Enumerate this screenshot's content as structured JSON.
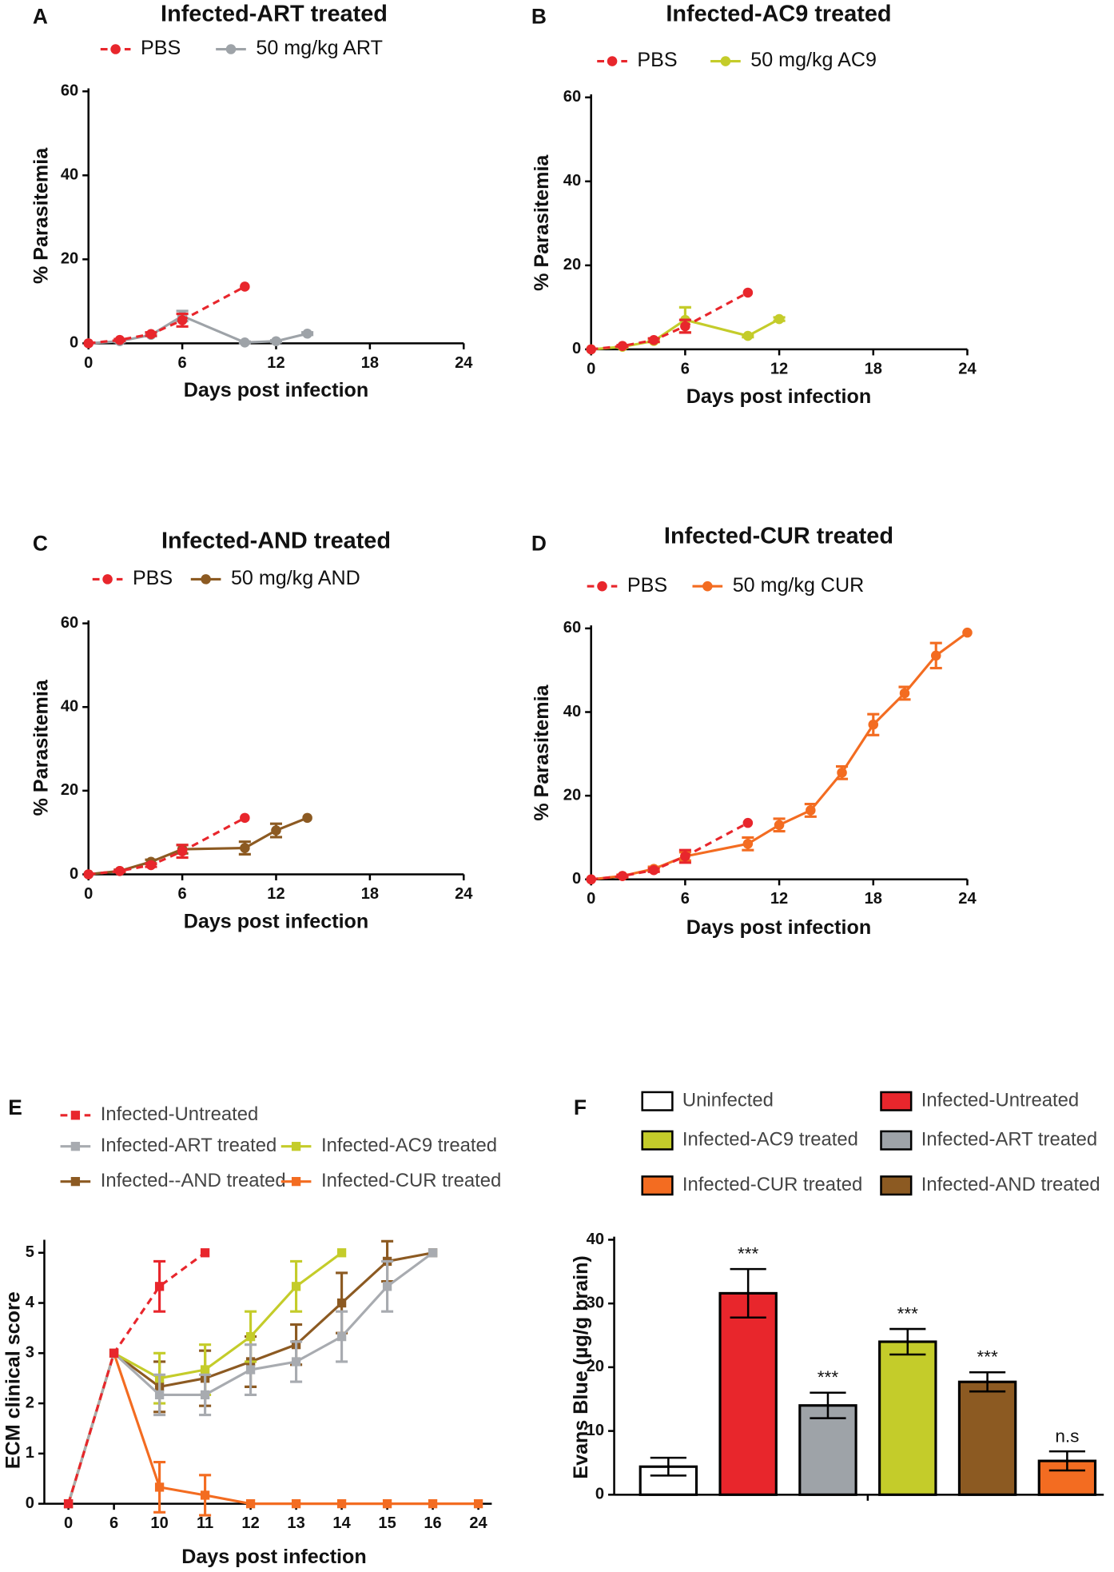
{
  "chart_data": [
    {
      "panel_label": "A",
      "type": "line",
      "title": "Infected-ART treated",
      "xlabel": "Days post infection",
      "ylabel": "% Parasitemia",
      "xlim": [
        0,
        24
      ],
      "xticks": [
        0,
        6,
        12,
        18,
        24
      ],
      "ylim": [
        0,
        60
      ],
      "yticks": [
        0,
        20,
        40,
        60
      ],
      "series": [
        {
          "name": "PBS",
          "color": "#e8262c",
          "line_style": "dashed",
          "marker": "circle",
          "x": [
            0,
            2,
            4,
            6,
            10
          ],
          "values": [
            0,
            0.8,
            2.2,
            5.5,
            13.5
          ],
          "errors": [
            0,
            0.2,
            0.4,
            1.5,
            0
          ]
        },
        {
          "name": "50 mg/kg ART",
          "color": "#9ea3a8",
          "line_style": "solid",
          "marker": "circle",
          "x": [
            0,
            2,
            4,
            6,
            10,
            12,
            14
          ],
          "values": [
            0,
            0.5,
            2,
            6.5,
            0.2,
            0.5,
            2.3
          ],
          "errors": [
            0,
            0.2,
            0.3,
            1.2,
            0.2,
            0.2,
            0.3
          ]
        }
      ]
    },
    {
      "panel_label": "B",
      "type": "line",
      "title": "Infected-AC9 treated",
      "xlabel": "Days post infection",
      "ylabel": "% Parasitemia",
      "xlim": [
        0,
        24
      ],
      "xticks": [
        0,
        6,
        12,
        18,
        24
      ],
      "ylim": [
        0,
        60
      ],
      "yticks": [
        0,
        20,
        40,
        60
      ],
      "series": [
        {
          "name": "PBS",
          "color": "#e8262c",
          "line_style": "dashed",
          "marker": "circle",
          "x": [
            0,
            2,
            4,
            6,
            10
          ],
          "values": [
            0,
            0.8,
            2.2,
            5.5,
            13.5
          ],
          "errors": [
            0,
            0.2,
            0.4,
            1.5,
            0
          ]
        },
        {
          "name": "50 mg/kg AC9",
          "color": "#c4cc2a",
          "line_style": "solid",
          "marker": "circle",
          "x": [
            0,
            2,
            4,
            6,
            10,
            12
          ],
          "values": [
            0,
            0.6,
            2,
            7,
            3.2,
            7.2
          ],
          "errors": [
            0,
            0.2,
            0.3,
            3,
            0.3,
            0.4
          ]
        }
      ]
    },
    {
      "panel_label": "C",
      "type": "line",
      "title": "Infected-AND treated",
      "xlabel": "Days post infection",
      "ylabel": "% Parasitemia",
      "xlim": [
        0,
        24
      ],
      "xticks": [
        0,
        6,
        12,
        18,
        24
      ],
      "ylim": [
        0,
        60
      ],
      "yticks": [
        0,
        20,
        40,
        60
      ],
      "series": [
        {
          "name": "PBS",
          "color": "#e8262c",
          "line_style": "dashed",
          "marker": "circle",
          "x": [
            0,
            2,
            4,
            6,
            10
          ],
          "values": [
            0,
            0.8,
            2.2,
            5.5,
            13.5
          ],
          "errors": [
            0,
            0.2,
            0.4,
            1.5,
            0
          ]
        },
        {
          "name": "50 mg/kg AND",
          "color": "#8c5a22",
          "line_style": "solid",
          "marker": "circle",
          "x": [
            0,
            2,
            4,
            6,
            10,
            12,
            14
          ],
          "values": [
            0,
            0.8,
            3,
            6,
            6.3,
            10.5,
            13.5
          ],
          "errors": [
            0,
            0.3,
            0.5,
            1,
            1.5,
            1.6,
            0
          ]
        }
      ]
    },
    {
      "panel_label": "D",
      "type": "line",
      "title": "Infected-CUR treated",
      "xlabel": "Days post infection",
      "ylabel": "% Parasitemia",
      "xlim": [
        0,
        24
      ],
      "xticks": [
        0,
        6,
        12,
        18,
        24
      ],
      "ylim": [
        0,
        60
      ],
      "yticks": [
        0,
        20,
        40,
        60
      ],
      "series": [
        {
          "name": "PBS",
          "color": "#e8262c",
          "line_style": "dashed",
          "marker": "circle",
          "x": [
            0,
            2,
            4,
            6,
            10
          ],
          "values": [
            0,
            0.8,
            2.2,
            5.5,
            13.5
          ],
          "errors": [
            0,
            0.2,
            0.4,
            1.5,
            0
          ]
        },
        {
          "name": "50 mg/kg CUR",
          "color": "#f36c21",
          "line_style": "solid",
          "marker": "circle",
          "x": [
            0,
            2,
            4,
            6,
            10,
            12,
            14,
            16,
            18,
            20,
            22,
            24
          ],
          "values": [
            0,
            0.8,
            2.5,
            5.5,
            8.5,
            13,
            16.5,
            25.5,
            37,
            44.5,
            53.5,
            59
          ],
          "errors": [
            0,
            0.3,
            0.5,
            1,
            1.5,
            1.5,
            1.5,
            1.5,
            2.5,
            1.5,
            3,
            0
          ]
        }
      ]
    },
    {
      "panel_label": "E",
      "type": "line",
      "xlabel": "Days post infection",
      "ylabel": "ECM clinical score",
      "categories": [
        "0",
        "6",
        "10",
        "11",
        "12",
        "13",
        "14",
        "15",
        "16",
        "24"
      ],
      "ylim": [
        0,
        5.2
      ],
      "yticks": [
        0,
        1,
        2,
        3,
        4,
        5
      ],
      "series": [
        {
          "name": "Infected-Untreated",
          "color": "#e8262c",
          "line_style": "dashed",
          "marker": "square",
          "values": [
            0,
            3,
            4.33,
            5,
            null,
            null,
            null,
            null,
            null,
            null
          ],
          "errors": [
            0,
            0,
            0.5,
            0,
            null,
            null,
            null,
            null,
            null,
            null
          ]
        },
        {
          "name": "Infected-ART treated",
          "color": "#a8abb0",
          "line_style": "solid",
          "marker": "square",
          "values": [
            0,
            3,
            2.17,
            2.17,
            2.67,
            2.83,
            3.33,
            4.33,
            5,
            null
          ],
          "errors": [
            0,
            0,
            0.4,
            0.4,
            0.5,
            0.4,
            0.5,
            0.5,
            0,
            null
          ]
        },
        {
          "name": "Infected-AC9 treated",
          "color": "#c4cc2a",
          "line_style": "solid",
          "marker": "square",
          "values": [
            0,
            3,
            2.5,
            2.67,
            3.33,
            4.33,
            5,
            null,
            null,
            null
          ],
          "errors": [
            0,
            0,
            0.5,
            0.5,
            0.5,
            0.5,
            0,
            null,
            null,
            null
          ]
        },
        {
          "name": "Infected--AND treated",
          "color": "#8c5a22",
          "line_style": "solid",
          "marker": "square",
          "values": [
            0,
            3,
            2.33,
            2.5,
            2.83,
            3.17,
            4,
            4.83,
            5,
            null
          ],
          "errors": [
            0,
            0,
            0.5,
            0.55,
            0.5,
            0.4,
            0.6,
            0.4,
            0,
            null
          ]
        },
        {
          "name": "Infected-CUR treated",
          "color": "#f36c21",
          "line_style": "solid",
          "marker": "square",
          "values": [
            0,
            3,
            0.33,
            0.17,
            0,
            0,
            0,
            0,
            0,
            0
          ],
          "errors": [
            0,
            0,
            0.5,
            0.4,
            0,
            0,
            0,
            0,
            0,
            0
          ]
        }
      ]
    },
    {
      "panel_label": "F",
      "type": "bar",
      "ylabel": "Evans Blue (µg/g brain)",
      "categories": [
        "Uninfected",
        "Infected-Untreated",
        "Infected-ART treated",
        "Infected-AC9 treated",
        "Infected-AND treated",
        "Infected-CUR treated"
      ],
      "values": [
        4.4,
        31.6,
        14,
        24,
        17.7,
        5.3
      ],
      "errors": [
        1.4,
        3.8,
        2,
        2,
        1.5,
        1.5
      ],
      "colors": [
        "#ffffff",
        "#e8262c",
        "#9ea3a8",
        "#c4cc2a",
        "#8c5a22",
        "#f36c21"
      ],
      "significance": [
        null,
        "***",
        "***",
        "***",
        "***",
        "n.s"
      ],
      "ylim": [
        0,
        40
      ],
      "yticks": [
        0,
        10,
        20,
        30,
        40
      ]
    }
  ]
}
